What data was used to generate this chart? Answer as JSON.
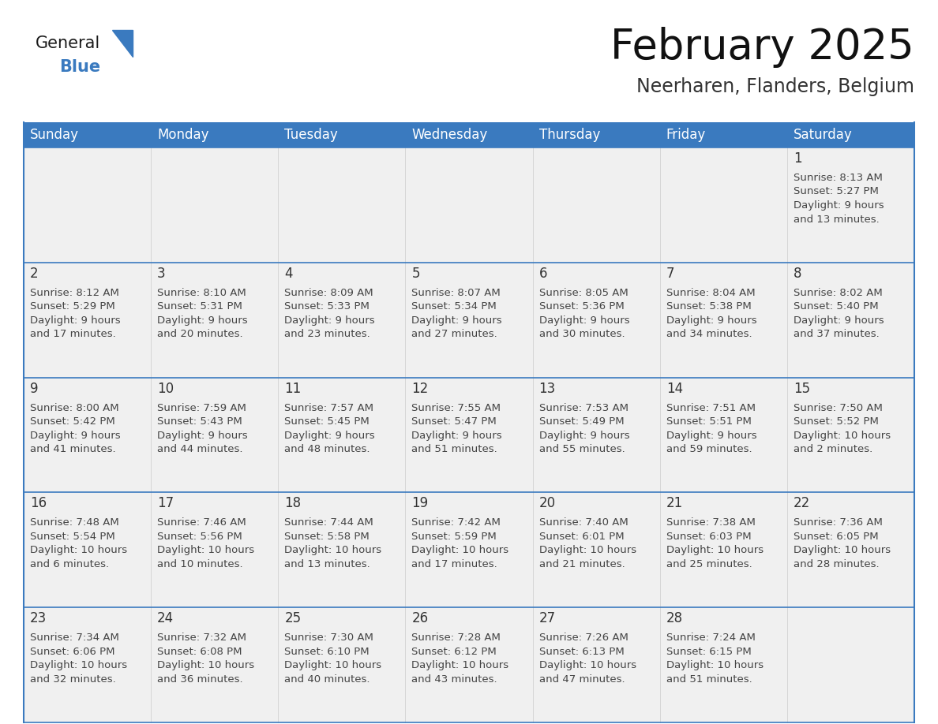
{
  "title": "February 2025",
  "subtitle": "Neerharen, Flanders, Belgium",
  "header_bg": "#3a7abf",
  "header_text": "#ffffff",
  "cell_bg": "#f0f0f0",
  "cell_bg_white": "#ffffff",
  "day_number_color": "#333333",
  "cell_text_color": "#444444",
  "border_color": "#3a7abf",
  "week_line_color": "#3a7abf",
  "days_of_week": [
    "Sunday",
    "Monday",
    "Tuesday",
    "Wednesday",
    "Thursday",
    "Friday",
    "Saturday"
  ],
  "weeks": [
    [
      {
        "day": null,
        "info": ""
      },
      {
        "day": null,
        "info": ""
      },
      {
        "day": null,
        "info": ""
      },
      {
        "day": null,
        "info": ""
      },
      {
        "day": null,
        "info": ""
      },
      {
        "day": null,
        "info": ""
      },
      {
        "day": 1,
        "info": "Sunrise: 8:13 AM\nSunset: 5:27 PM\nDaylight: 9 hours\nand 13 minutes."
      }
    ],
    [
      {
        "day": 2,
        "info": "Sunrise: 8:12 AM\nSunset: 5:29 PM\nDaylight: 9 hours\nand 17 minutes."
      },
      {
        "day": 3,
        "info": "Sunrise: 8:10 AM\nSunset: 5:31 PM\nDaylight: 9 hours\nand 20 minutes."
      },
      {
        "day": 4,
        "info": "Sunrise: 8:09 AM\nSunset: 5:33 PM\nDaylight: 9 hours\nand 23 minutes."
      },
      {
        "day": 5,
        "info": "Sunrise: 8:07 AM\nSunset: 5:34 PM\nDaylight: 9 hours\nand 27 minutes."
      },
      {
        "day": 6,
        "info": "Sunrise: 8:05 AM\nSunset: 5:36 PM\nDaylight: 9 hours\nand 30 minutes."
      },
      {
        "day": 7,
        "info": "Sunrise: 8:04 AM\nSunset: 5:38 PM\nDaylight: 9 hours\nand 34 minutes."
      },
      {
        "day": 8,
        "info": "Sunrise: 8:02 AM\nSunset: 5:40 PM\nDaylight: 9 hours\nand 37 minutes."
      }
    ],
    [
      {
        "day": 9,
        "info": "Sunrise: 8:00 AM\nSunset: 5:42 PM\nDaylight: 9 hours\nand 41 minutes."
      },
      {
        "day": 10,
        "info": "Sunrise: 7:59 AM\nSunset: 5:43 PM\nDaylight: 9 hours\nand 44 minutes."
      },
      {
        "day": 11,
        "info": "Sunrise: 7:57 AM\nSunset: 5:45 PM\nDaylight: 9 hours\nand 48 minutes."
      },
      {
        "day": 12,
        "info": "Sunrise: 7:55 AM\nSunset: 5:47 PM\nDaylight: 9 hours\nand 51 minutes."
      },
      {
        "day": 13,
        "info": "Sunrise: 7:53 AM\nSunset: 5:49 PM\nDaylight: 9 hours\nand 55 minutes."
      },
      {
        "day": 14,
        "info": "Sunrise: 7:51 AM\nSunset: 5:51 PM\nDaylight: 9 hours\nand 59 minutes."
      },
      {
        "day": 15,
        "info": "Sunrise: 7:50 AM\nSunset: 5:52 PM\nDaylight: 10 hours\nand 2 minutes."
      }
    ],
    [
      {
        "day": 16,
        "info": "Sunrise: 7:48 AM\nSunset: 5:54 PM\nDaylight: 10 hours\nand 6 minutes."
      },
      {
        "day": 17,
        "info": "Sunrise: 7:46 AM\nSunset: 5:56 PM\nDaylight: 10 hours\nand 10 minutes."
      },
      {
        "day": 18,
        "info": "Sunrise: 7:44 AM\nSunset: 5:58 PM\nDaylight: 10 hours\nand 13 minutes."
      },
      {
        "day": 19,
        "info": "Sunrise: 7:42 AM\nSunset: 5:59 PM\nDaylight: 10 hours\nand 17 minutes."
      },
      {
        "day": 20,
        "info": "Sunrise: 7:40 AM\nSunset: 6:01 PM\nDaylight: 10 hours\nand 21 minutes."
      },
      {
        "day": 21,
        "info": "Sunrise: 7:38 AM\nSunset: 6:03 PM\nDaylight: 10 hours\nand 25 minutes."
      },
      {
        "day": 22,
        "info": "Sunrise: 7:36 AM\nSunset: 6:05 PM\nDaylight: 10 hours\nand 28 minutes."
      }
    ],
    [
      {
        "day": 23,
        "info": "Sunrise: 7:34 AM\nSunset: 6:06 PM\nDaylight: 10 hours\nand 32 minutes."
      },
      {
        "day": 24,
        "info": "Sunrise: 7:32 AM\nSunset: 6:08 PM\nDaylight: 10 hours\nand 36 minutes."
      },
      {
        "day": 25,
        "info": "Sunrise: 7:30 AM\nSunset: 6:10 PM\nDaylight: 10 hours\nand 40 minutes."
      },
      {
        "day": 26,
        "info": "Sunrise: 7:28 AM\nSunset: 6:12 PM\nDaylight: 10 hours\nand 43 minutes."
      },
      {
        "day": 27,
        "info": "Sunrise: 7:26 AM\nSunset: 6:13 PM\nDaylight: 10 hours\nand 47 minutes."
      },
      {
        "day": 28,
        "info": "Sunrise: 7:24 AM\nSunset: 6:15 PM\nDaylight: 10 hours\nand 51 minutes."
      },
      {
        "day": null,
        "info": ""
      }
    ]
  ],
  "logo_text_general": "General",
  "logo_text_blue": "Blue",
  "logo_color_general": "#1a1a1a",
  "logo_color_blue": "#3a7abf",
  "logo_triangle_color": "#3a7abf",
  "title_fontsize": 38,
  "subtitle_fontsize": 17,
  "header_fontsize": 12,
  "day_num_fontsize": 12,
  "cell_text_fontsize": 9.5
}
